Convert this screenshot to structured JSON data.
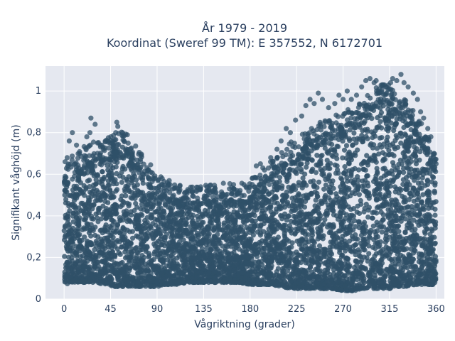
{
  "chart_data": {
    "type": "scatter",
    "title_line1": "År 1979 - 2019",
    "title_line2": "Koordinat (Sweref 99 TM): E 357552, N 6172701",
    "xlabel": "Vågriktning (grader)",
    "ylabel": "Signifikant våghöjd (m)",
    "xlim": [
      -18,
      368
    ],
    "ylim": [
      0,
      1.12
    ],
    "grid": true,
    "x_ticks": [
      {
        "value": 0,
        "label": "0"
      },
      {
        "value": 45,
        "label": "45"
      },
      {
        "value": 90,
        "label": "90"
      },
      {
        "value": 135,
        "label": "135"
      },
      {
        "value": 180,
        "label": "180"
      },
      {
        "value": 225,
        "label": "225"
      },
      {
        "value": 270,
        "label": "270"
      },
      {
        "value": 315,
        "label": "315"
      },
      {
        "value": 360,
        "label": "360"
      }
    ],
    "y_ticks": [
      {
        "value": 0,
        "label": "0"
      },
      {
        "value": 0.2,
        "label": "0,2"
      },
      {
        "value": 0.4,
        "label": "0,4"
      },
      {
        "value": 0.6,
        "label": "0,6"
      },
      {
        "value": 0.8,
        "label": "0,8"
      },
      {
        "value": 1.0,
        "label": "1"
      }
    ],
    "colors": {
      "marker": "#2f5068",
      "plot_bg": "#e5e8f0",
      "grid": "#ffffff",
      "text": "#2a3f5f"
    },
    "envelope": {
      "x": [
        0,
        10,
        20,
        30,
        40,
        50,
        55,
        60,
        70,
        80,
        90,
        100,
        110,
        120,
        130,
        140,
        150,
        160,
        170,
        180,
        190,
        200,
        210,
        220,
        230,
        240,
        250,
        260,
        270,
        280,
        290,
        300,
        310,
        315,
        320,
        330,
        340,
        350,
        360
      ],
      "upper": [
        0.58,
        0.62,
        0.66,
        0.68,
        0.69,
        0.72,
        0.74,
        0.72,
        0.66,
        0.6,
        0.52,
        0.5,
        0.48,
        0.46,
        0.47,
        0.47,
        0.48,
        0.48,
        0.48,
        0.5,
        0.54,
        0.6,
        0.64,
        0.68,
        0.72,
        0.76,
        0.78,
        0.8,
        0.82,
        0.86,
        0.9,
        0.94,
        0.96,
        0.95,
        0.93,
        0.88,
        0.82,
        0.74,
        0.62
      ],
      "lower": [
        0.07,
        0.08,
        0.08,
        0.08,
        0.07,
        0.06,
        0.06,
        0.06,
        0.06,
        0.06,
        0.06,
        0.07,
        0.07,
        0.08,
        0.08,
        0.08,
        0.08,
        0.08,
        0.08,
        0.07,
        0.07,
        0.07,
        0.06,
        0.05,
        0.05,
        0.05,
        0.05,
        0.05,
        0.04,
        0.04,
        0.05,
        0.05,
        0.05,
        0.05,
        0.06,
        0.06,
        0.07,
        0.07,
        0.07
      ]
    },
    "outliers": [
      {
        "x": 5,
        "y": 0.76
      },
      {
        "x": 8,
        "y": 0.8
      },
      {
        "x": 12,
        "y": 0.74
      },
      {
        "x": 15,
        "y": 0.7
      },
      {
        "x": 22,
        "y": 0.78
      },
      {
        "x": 25,
        "y": 0.8
      },
      {
        "x": 26,
        "y": 0.87
      },
      {
        "x": 30,
        "y": 0.84
      },
      {
        "x": 35,
        "y": 0.74
      },
      {
        "x": 38,
        "y": 0.72
      },
      {
        "x": 50,
        "y": 0.8
      },
      {
        "x": 51,
        "y": 0.85
      },
      {
        "x": 52,
        "y": 0.83
      },
      {
        "x": 58,
        "y": 0.76
      },
      {
        "x": 62,
        "y": 0.75
      },
      {
        "x": 66,
        "y": 0.7
      },
      {
        "x": 74,
        "y": 0.66
      },
      {
        "x": 84,
        "y": 0.61
      },
      {
        "x": 100,
        "y": 0.56
      },
      {
        "x": 110,
        "y": 0.53
      },
      {
        "x": 124,
        "y": 0.52
      },
      {
        "x": 132,
        "y": 0.53
      },
      {
        "x": 138,
        "y": 0.52
      },
      {
        "x": 146,
        "y": 0.51
      },
      {
        "x": 152,
        "y": 0.5
      },
      {
        "x": 160,
        "y": 0.53
      },
      {
        "x": 164,
        "y": 0.55
      },
      {
        "x": 170,
        "y": 0.51
      },
      {
        "x": 176,
        "y": 0.54
      },
      {
        "x": 182,
        "y": 0.58
      },
      {
        "x": 186,
        "y": 0.64
      },
      {
        "x": 190,
        "y": 0.65
      },
      {
        "x": 194,
        "y": 0.62
      },
      {
        "x": 200,
        "y": 0.68
      },
      {
        "x": 206,
        "y": 0.72
      },
      {
        "x": 210,
        "y": 0.76
      },
      {
        "x": 215,
        "y": 0.82
      },
      {
        "x": 219,
        "y": 0.8
      },
      {
        "x": 224,
        "y": 0.86
      },
      {
        "x": 230,
        "y": 0.88
      },
      {
        "x": 234,
        "y": 0.93
      },
      {
        "x": 238,
        "y": 0.96
      },
      {
        "x": 242,
        "y": 0.94
      },
      {
        "x": 246,
        "y": 0.99
      },
      {
        "x": 250,
        "y": 0.96
      },
      {
        "x": 256,
        "y": 0.92
      },
      {
        "x": 262,
        "y": 0.94
      },
      {
        "x": 266,
        "y": 0.98
      },
      {
        "x": 270,
        "y": 0.96
      },
      {
        "x": 274,
        "y": 1.0
      },
      {
        "x": 278,
        "y": 0.96
      },
      {
        "x": 283,
        "y": 0.98
      },
      {
        "x": 288,
        "y": 1.02
      },
      {
        "x": 292,
        "y": 1.05
      },
      {
        "x": 296,
        "y": 1.06
      },
      {
        "x": 300,
        "y": 1.04
      },
      {
        "x": 302,
        "y": 1.05
      },
      {
        "x": 305,
        "y": 1.01
      },
      {
        "x": 308,
        "y": 1.03
      },
      {
        "x": 312,
        "y": 1.02
      },
      {
        "x": 316,
        "y": 1.04
      },
      {
        "x": 318,
        "y": 1.06
      },
      {
        "x": 322,
        "y": 1.05
      },
      {
        "x": 326,
        "y": 1.08
      },
      {
        "x": 329,
        "y": 1.04
      },
      {
        "x": 333,
        "y": 1.02
      },
      {
        "x": 338,
        "y": 0.99
      },
      {
        "x": 342,
        "y": 0.96
      },
      {
        "x": 345,
        "y": 0.9
      },
      {
        "x": 348,
        "y": 0.87
      },
      {
        "x": 352,
        "y": 0.82
      },
      {
        "x": 355,
        "y": 0.78
      },
      {
        "x": 358,
        "y": 0.7
      },
      {
        "x": 360,
        "y": 0.65
      },
      {
        "x": 1,
        "y": 0.66
      },
      {
        "x": 3,
        "y": 0.68
      },
      {
        "x": 44,
        "y": 0.66
      },
      {
        "x": 88,
        "y": 0.58
      },
      {
        "x": 94,
        "y": 0.55
      },
      {
        "x": 118,
        "y": 0.49
      }
    ]
  }
}
